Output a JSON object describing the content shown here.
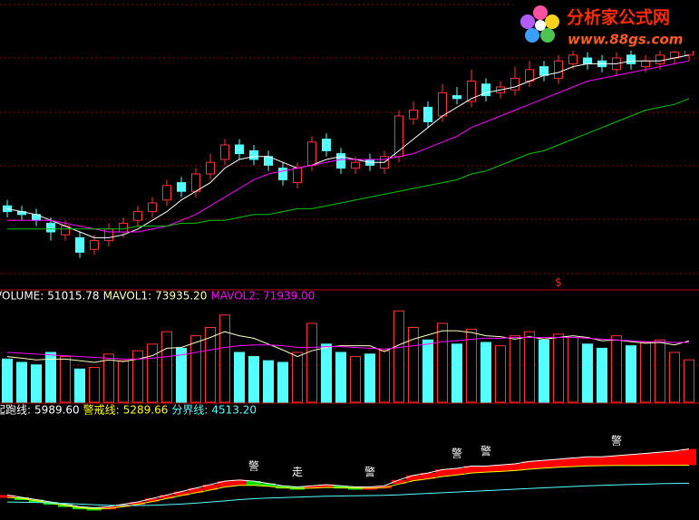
{
  "logo": {
    "title": "分析家公式网",
    "url": "www.88gs.com"
  },
  "chart_data": [
    {
      "type": "candlestick",
      "ylim": [
        0,
        100
      ],
      "up_color": "#ff3232",
      "down_color": "#54ffff",
      "open": [
        29,
        27,
        26,
        23,
        19,
        18,
        14,
        17,
        20,
        24,
        27,
        31,
        37,
        34,
        40,
        45,
        50,
        48,
        46,
        42,
        37,
        43,
        52,
        47,
        42,
        45,
        42,
        46,
        59,
        63,
        60,
        67,
        65,
        71,
        68,
        69,
        72,
        77,
        73,
        78,
        80,
        79,
        76,
        81,
        77,
        78,
        80,
        81
      ],
      "high": [
        31,
        29,
        28,
        25,
        24,
        20,
        19,
        23,
        25,
        29,
        32,
        38,
        39,
        42,
        47,
        52,
        52,
        50,
        48,
        44,
        44,
        53,
        54,
        49,
        46,
        47,
        48,
        62,
        65,
        65,
        71,
        70,
        76,
        73,
        72,
        77,
        79,
        79,
        81,
        84,
        82,
        81,
        82,
        83,
        81,
        83,
        84,
        85
      ],
      "low": [
        25,
        24,
        22,
        17,
        17,
        11,
        12,
        15,
        18,
        22,
        25,
        29,
        32,
        32,
        38,
        43,
        45,
        43,
        41,
        36,
        35,
        41,
        46,
        40,
        40,
        41,
        40,
        44,
        57,
        56,
        58,
        64,
        63,
        65,
        66,
        67,
        70,
        72,
        71,
        76,
        76,
        75,
        74,
        76,
        75,
        76,
        78,
        79
      ],
      "close": [
        27,
        26,
        24,
        20,
        22,
        13,
        17,
        21,
        23,
        27,
        30,
        36,
        34,
        40,
        44,
        50,
        47,
        45,
        43,
        38,
        42,
        51,
        48,
        42,
        44,
        43,
        46,
        60,
        62,
        58,
        68,
        66,
        72,
        67,
        70,
        73,
        76,
        74,
        79,
        81,
        78,
        77,
        80,
        78,
        79,
        81,
        82,
        83
      ],
      "series": [
        {
          "color": "#ffffff",
          "values": [
            28,
            27,
            26,
            24,
            22,
            20,
            18,
            18,
            19,
            21,
            24,
            27,
            31,
            34,
            37,
            42,
            45,
            46,
            46,
            44,
            42,
            43,
            45,
            46,
            45,
            44,
            44,
            48,
            52,
            56,
            60,
            63,
            66,
            68,
            69,
            70,
            72,
            74,
            75,
            77,
            78,
            78,
            78,
            79,
            79,
            79,
            80,
            81
          ]
        },
        {
          "color": "#ff00ff",
          "values": [
            24,
            24,
            24,
            24,
            23,
            22,
            21,
            20,
            20,
            20,
            21,
            22,
            24,
            26,
            29,
            32,
            35,
            38,
            40,
            41,
            42,
            43,
            44,
            45,
            45,
            45,
            45,
            46,
            47,
            49,
            51,
            53,
            56,
            58,
            60,
            62,
            64,
            66,
            68,
            70,
            72,
            73,
            74,
            75,
            76,
            77,
            78,
            79
          ]
        },
        {
          "color": "#00c800",
          "values": [
            21,
            21,
            21,
            21,
            21,
            21,
            21,
            21,
            21,
            22,
            22,
            22,
            23,
            23,
            24,
            24,
            25,
            26,
            26,
            27,
            28,
            28,
            29,
            30,
            31,
            32,
            33,
            34,
            35,
            36,
            37,
            38,
            40,
            41,
            43,
            45,
            47,
            48,
            50,
            52,
            54,
            56,
            58,
            60,
            62,
            63,
            64,
            66
          ]
        }
      ],
      "annotations": [
        {
          "index": 38,
          "text": "$",
          "color": "#ff2020"
        }
      ]
    },
    {
      "type": "bar",
      "ylim": [
        0,
        120000
      ],
      "name": "VOLUME:",
      "color": "#ffffff",
      "value_label": "51015.78",
      "values": [
        52000,
        48000,
        45000,
        60000,
        55000,
        40000,
        42000,
        58000,
        50000,
        62000,
        70000,
        85000,
        65000,
        80000,
        90000,
        105000,
        60000,
        55000,
        50000,
        48000,
        60000,
        95000,
        70000,
        60000,
        55000,
        58000,
        62000,
        110000,
        90000,
        75000,
        95000,
        70000,
        88000,
        72000,
        68000,
        80000,
        85000,
        75000,
        82000,
        78000,
        70000,
        65000,
        80000,
        68000,
        72000,
        75000,
        60000,
        51015.78
      ],
      "series": [
        {
          "name": "MAVOL1:",
          "color": "#ffffc0",
          "value_label": "73935.20",
          "values": [
            55000,
            53000,
            51000,
            52000,
            52000,
            50000,
            48000,
            51000,
            49000,
            52000,
            56000,
            65000,
            66000,
            72000,
            78000,
            85000,
            80000,
            77000,
            70000,
            63000,
            55000,
            62000,
            66000,
            68000,
            68000,
            68000,
            61000,
            69000,
            76000,
            81000,
            86000,
            86000,
            84000,
            80000,
            79000,
            76000,
            79000,
            76000,
            78000,
            80000,
            78000,
            74000,
            75000,
            73000,
            71000,
            72000,
            69000,
            73935.2
          ]
        },
        {
          "name": "MAVOL2:",
          "color": "#ff00ff",
          "value_label": "71939.00",
          "values": [
            60000,
            59000,
            58000,
            57000,
            56000,
            55000,
            54000,
            53000,
            52000,
            52000,
            53000,
            55000,
            57000,
            60000,
            63000,
            66000,
            68000,
            69000,
            69000,
            68000,
            66000,
            66000,
            67000,
            67000,
            66000,
            65000,
            64000,
            66000,
            68000,
            70000,
            73000,
            74000,
            76000,
            77000,
            77000,
            78000,
            78000,
            78000,
            78000,
            78000,
            77000,
            76000,
            75000,
            74000,
            73000,
            73000,
            72000,
            71939
          ]
        }
      ]
    },
    {
      "type": "line",
      "ylim": [
        3000,
        7500
      ],
      "rise_color": "#ff0000",
      "fall_color": "#00e000",
      "series": [
        {
          "name": "起跑线:",
          "color": "#ffffff",
          "value_label": "5989.60",
          "values": [
            4000,
            3900,
            3800,
            3700,
            3600,
            3500,
            3450,
            3500,
            3600,
            3700,
            3850,
            4000,
            4150,
            4300,
            4450,
            4600,
            4650,
            4600,
            4500,
            4400,
            4350,
            4400,
            4450,
            4400,
            4350,
            4350,
            4400,
            4650,
            4850,
            4950,
            5100,
            5150,
            5250,
            5250,
            5300,
            5350,
            5450,
            5500,
            5550,
            5600,
            5650,
            5650,
            5700,
            5750,
            5800,
            5850,
            5900,
            5989.6
          ]
        },
        {
          "name": "警戒线:",
          "color": "#ffff00",
          "value_label": "5289.66",
          "values": [
            3900,
            3850,
            3750,
            3650,
            3550,
            3450,
            3400,
            3420,
            3500,
            3600,
            3720,
            3850,
            3980,
            4100,
            4220,
            4350,
            4420,
            4420,
            4380,
            4320,
            4280,
            4300,
            4330,
            4320,
            4300,
            4290,
            4320,
            4480,
            4620,
            4700,
            4800,
            4870,
            4950,
            4990,
            5020,
            5060,
            5120,
            5160,
            5200,
            5230,
            5260,
            5270,
            5280,
            5280,
            5280,
            5285,
            5285,
            5289.66
          ]
        },
        {
          "name": "分界线:",
          "color": "#54ffff",
          "value_label": "4513.20",
          "values": [
            3700,
            3690,
            3680,
            3660,
            3640,
            3610,
            3580,
            3560,
            3550,
            3550,
            3560,
            3580,
            3610,
            3650,
            3700,
            3750,
            3800,
            3840,
            3870,
            3890,
            3910,
            3930,
            3950,
            3960,
            3970,
            3980,
            3990,
            4010,
            4040,
            4070,
            4100,
            4130,
            4160,
            4190,
            4220,
            4250,
            4280,
            4310,
            4340,
            4370,
            4400,
            4420,
            4440,
            4460,
            4470,
            4490,
            4500,
            4513.2
          ]
        }
      ],
      "annotations": [
        {
          "index": 17,
          "text": "警"
        },
        {
          "index": 20,
          "text": "走"
        },
        {
          "index": 25,
          "text": "警"
        },
        {
          "index": 31,
          "text": "警"
        },
        {
          "index": 33,
          "text": "警"
        },
        {
          "index": 42,
          "text": "警"
        }
      ]
    }
  ]
}
